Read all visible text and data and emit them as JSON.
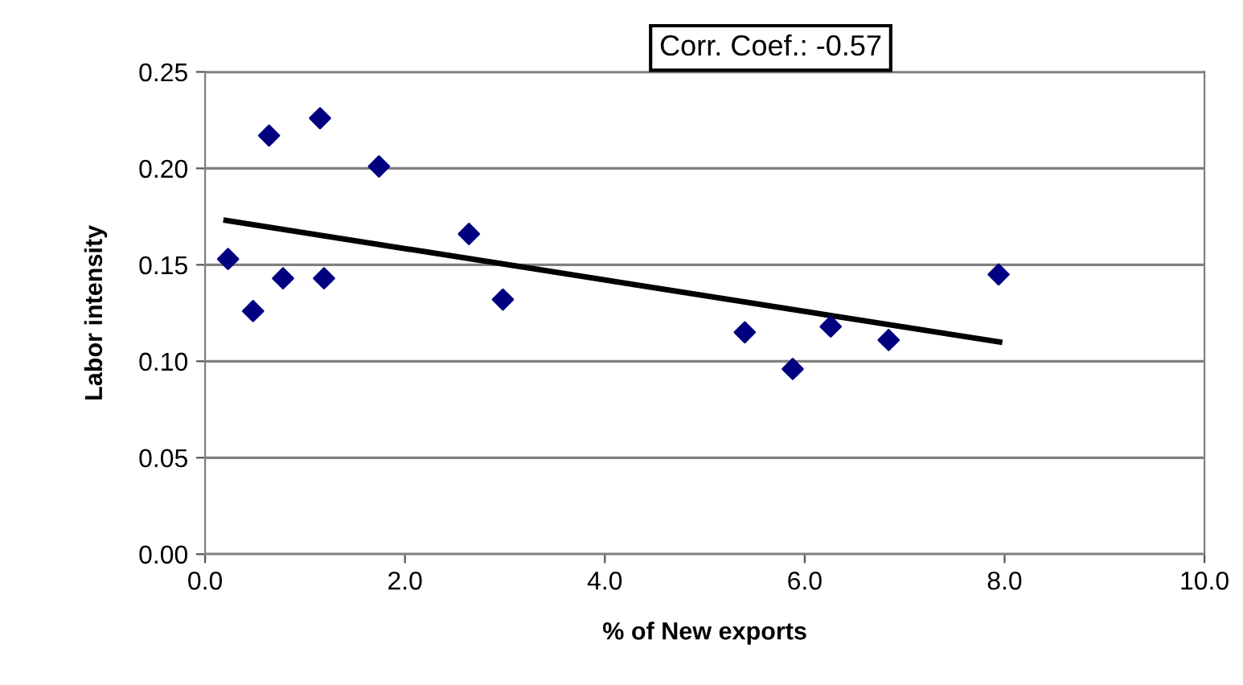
{
  "chart_data": {
    "type": "scatter",
    "xlabel": "% of New exports",
    "ylabel": "Labor intensity",
    "annotations": [
      "Corr. Coef.: -0.57"
    ],
    "xlim": [
      0,
      10
    ],
    "xticks": [
      {
        "value": 0,
        "label": "0.0"
      },
      {
        "value": 2,
        "label": "2.0"
      },
      {
        "value": 4,
        "label": "4.0"
      },
      {
        "value": 6,
        "label": "6.0"
      },
      {
        "value": 8,
        "label": "8.0"
      },
      {
        "value": 10,
        "label": "10.0"
      }
    ],
    "ylim": [
      0,
      0.25
    ],
    "yticks": [
      {
        "value": 0,
        "label": "0.00"
      },
      {
        "value": 0.05,
        "label": "0.05"
      },
      {
        "value": 0.1,
        "label": "0.10"
      },
      {
        "value": 0.15,
        "label": "0.15"
      },
      {
        "value": 0.2,
        "label": "0.20"
      },
      {
        "value": 0.25,
        "label": "0.25"
      }
    ],
    "grid": "y",
    "legend": false,
    "series": [
      {
        "color": "#000080",
        "marker": "diamond",
        "x": [
          0.23,
          0.48,
          0.64,
          0.78,
          1.15,
          1.19,
          1.74,
          2.64,
          2.98,
          5.4,
          5.88,
          6.26,
          6.84,
          7.94
        ],
        "values": [
          0.153,
          0.126,
          0.217,
          0.143,
          0.226,
          0.143,
          0.201,
          0.166,
          0.132,
          0.115,
          0.096,
          0.118,
          0.111,
          0.145
        ]
      },
      {
        "type": "line",
        "color": "#000000",
        "marker": "none",
        "line_style": "solid",
        "x": [
          0.21,
          7.95
        ],
        "values": [
          0.173,
          0.11
        ]
      }
    ]
  }
}
